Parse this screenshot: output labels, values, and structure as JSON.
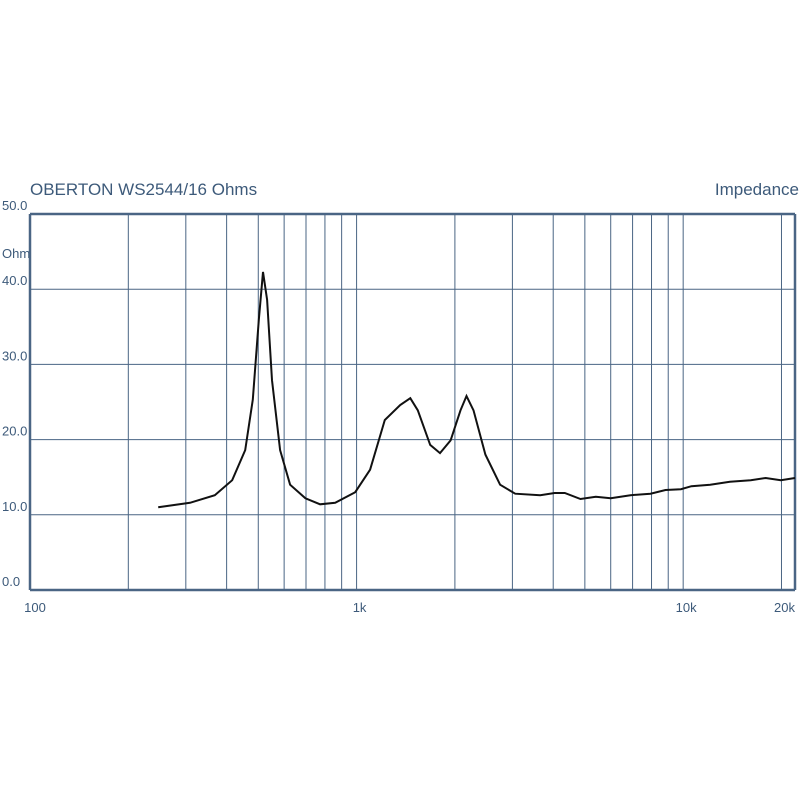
{
  "chart_data": {
    "type": "line",
    "title": "OBERTON WS2544/16 Ohms",
    "subtitle": "Impedance",
    "y_label": "Ohm",
    "xscale": "log",
    "grid": true,
    "grid_color": "#4a6584",
    "xlim": [
      100,
      22000
    ],
    "ylim": [
      0,
      50
    ],
    "xticks": [
      100,
      {
        "value": 1000,
        "label": "1k"
      },
      {
        "value": 10000,
        "label": "10k"
      },
      {
        "value": 20000,
        "label": "20k"
      }
    ],
    "xminor": [
      200,
      300,
      400,
      500,
      600,
      700,
      800,
      900,
      2000,
      3000,
      4000,
      5000,
      6000,
      7000,
      8000,
      9000
    ],
    "yticks": [
      {
        "value": 0,
        "label": "0.0"
      },
      {
        "value": 10,
        "label": "10.0"
      },
      {
        "value": 20,
        "label": "20.0"
      },
      {
        "value": 30,
        "label": "30.0"
      },
      {
        "value": 40,
        "label": "40.0"
      },
      {
        "value": 50,
        "label": "50.0"
      }
    ],
    "x": [
      247,
      309,
      368,
      416,
      456,
      481,
      502,
      517,
      532,
      551,
      583,
      626,
      697,
      773,
      860,
      990,
      1100,
      1220,
      1360,
      1460,
      1540,
      1680,
      1800,
      1940,
      2080,
      2170,
      2280,
      2480,
      2750,
      3060,
      3650,
      4040,
      4340,
      4850,
      5400,
      6000,
      6900,
      7940,
      8830,
      9840,
      10600,
      12100,
      13900,
      16100,
      17900,
      19900,
      22000
    ],
    "series": [
      {
        "name": "Impedance",
        "color": "#111111",
        "values": [
          11.0,
          11.6,
          12.6,
          14.6,
          18.6,
          25.3,
          35.9,
          42.3,
          38.6,
          27.9,
          18.6,
          14.0,
          12.2,
          11.4,
          11.6,
          13.0,
          16.0,
          22.6,
          24.6,
          25.5,
          23.9,
          19.3,
          18.2,
          19.9,
          23.9,
          25.8,
          23.9,
          18.0,
          14.0,
          12.8,
          12.6,
          12.9,
          12.9,
          12.1,
          12.4,
          12.2,
          12.6,
          12.8,
          13.3,
          13.4,
          13.8,
          14.0,
          14.4,
          14.6,
          14.9,
          14.6,
          14.9
        ]
      }
    ]
  }
}
